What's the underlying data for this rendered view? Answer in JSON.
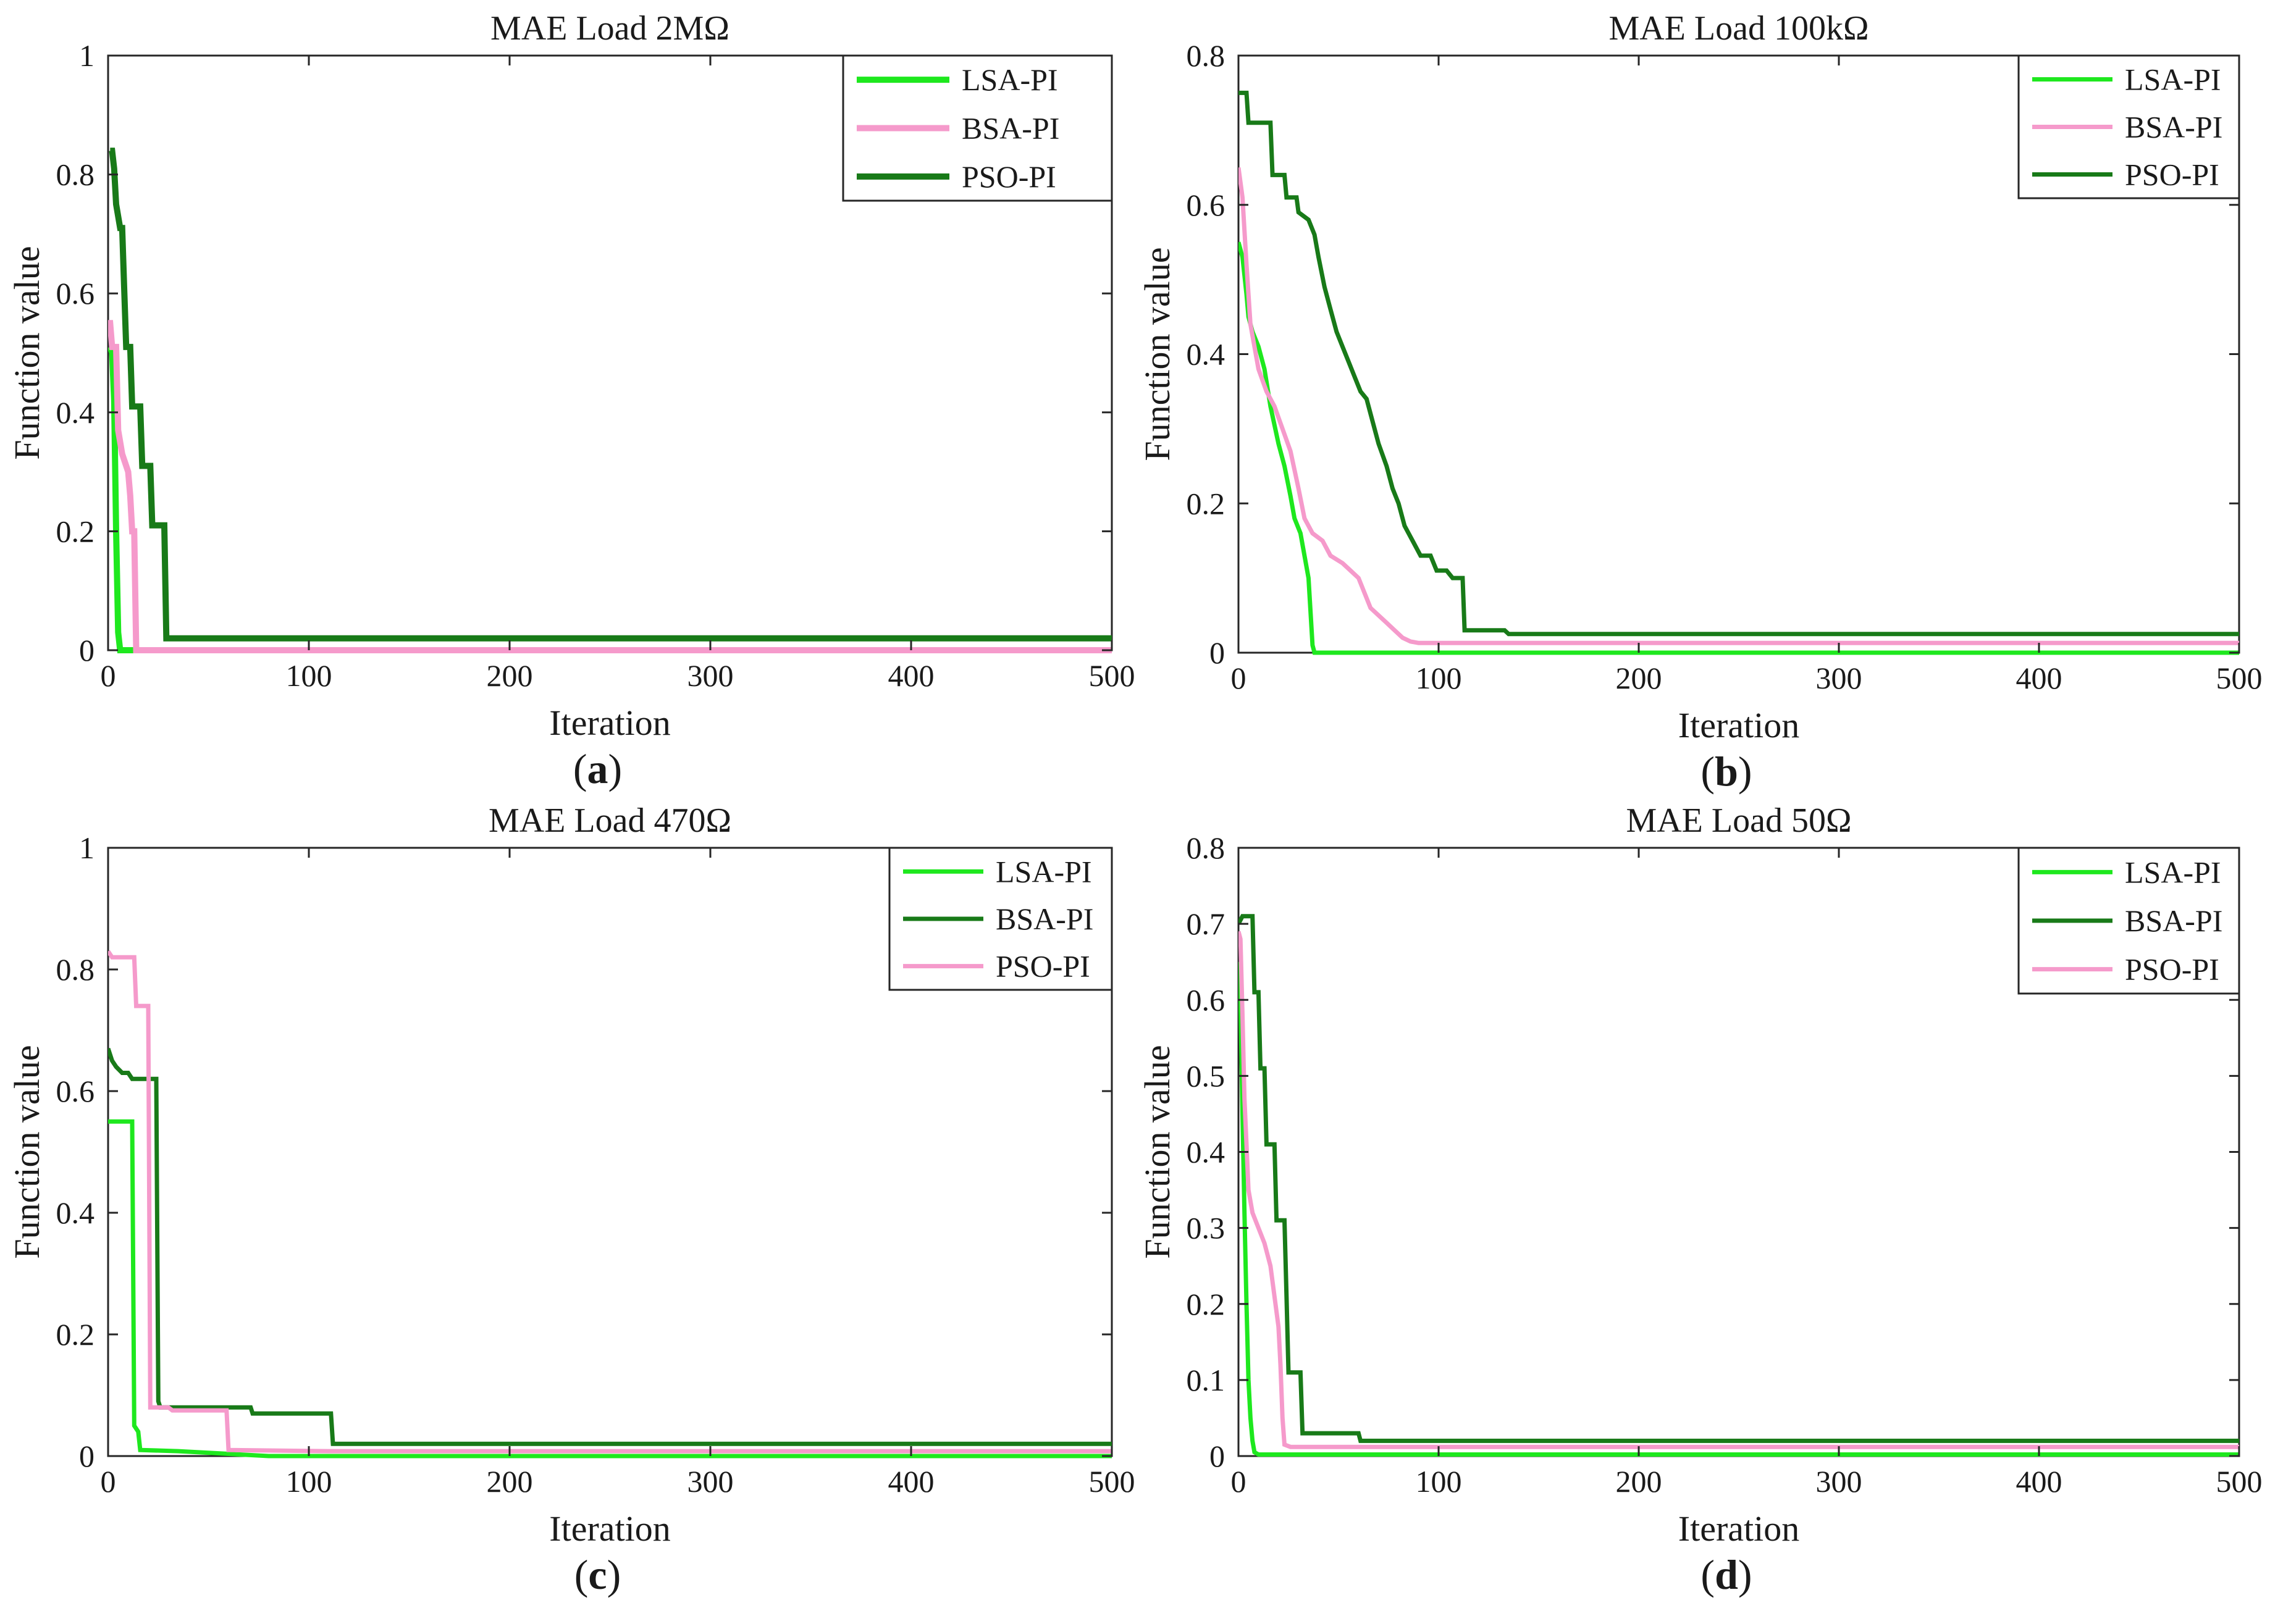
{
  "colors": {
    "light_green": "#1EE81E",
    "dark_green": "#187A18",
    "pink": "#F59ACB"
  },
  "chart_data": [
    {
      "type": "line",
      "subplot_label": "(a)",
      "sublabel_letter": "a",
      "title": "MAE Load 2MΩ",
      "xlabel": "Iteration",
      "ylabel": "Function value",
      "xlim": [
        0,
        500
      ],
      "ylim": [
        0,
        1
      ],
      "xticks": [
        "0",
        "100",
        "200",
        "300",
        "400",
        "500"
      ],
      "yticks": [
        "0",
        "0.2",
        "0.4",
        "0.6",
        "0.8",
        "1"
      ],
      "grid": false,
      "legend_position": "top-right",
      "series": [
        {
          "name": "LSA-PI",
          "color": "#1EE81E",
          "points": [
            [
              1,
              0.51
            ],
            [
              2,
              0.5
            ],
            [
              3,
              0.42
            ],
            [
              4,
              0.2
            ],
            [
              5,
              0.03
            ],
            [
              6,
              0.0
            ],
            [
              500,
              0.0
            ]
          ]
        },
        {
          "name": "BSA-PI",
          "color": "#F59ACB",
          "points": [
            [
              0,
              0.55
            ],
            [
              1,
              0.55
            ],
            [
              2,
              0.51
            ],
            [
              4,
              0.51
            ],
            [
              5,
              0.37
            ],
            [
              7,
              0.33
            ],
            [
              9,
              0.31
            ],
            [
              10,
              0.3
            ],
            [
              11,
              0.26
            ],
            [
              12,
              0.2
            ],
            [
              13,
              0.2
            ],
            [
              14,
              0.0
            ],
            [
              500,
              0.0
            ]
          ]
        },
        {
          "name": "PSO-PI",
          "color": "#187A18",
          "points": [
            [
              1,
              0.84
            ],
            [
              2,
              0.84
            ],
            [
              3,
              0.81
            ],
            [
              4,
              0.75
            ],
            [
              6,
              0.71
            ],
            [
              7,
              0.71
            ],
            [
              8,
              0.61
            ],
            [
              9,
              0.51
            ],
            [
              11,
              0.51
            ],
            [
              12,
              0.41
            ],
            [
              16,
              0.41
            ],
            [
              17,
              0.31
            ],
            [
              21,
              0.31
            ],
            [
              22,
              0.21
            ],
            [
              28,
              0.21
            ],
            [
              29,
              0.02
            ],
            [
              500,
              0.02
            ]
          ]
        }
      ]
    },
    {
      "type": "line",
      "subplot_label": "(b)",
      "sublabel_letter": "b",
      "title": "MAE Load 100kΩ",
      "xlabel": "Iteration",
      "ylabel": "Function value",
      "xlim": [
        0,
        500
      ],
      "ylim": [
        0,
        0.8
      ],
      "xticks": [
        "0",
        "100",
        "200",
        "300",
        "400",
        "500"
      ],
      "yticks": [
        "0",
        "0.2",
        "0.4",
        "0.6",
        "0.8"
      ],
      "grid": false,
      "legend_position": "top-right",
      "series": [
        {
          "name": "LSA-PI",
          "color": "#1EE81E",
          "points": [
            [
              0,
              0.55
            ],
            [
              2,
              0.53
            ],
            [
              4,
              0.48
            ],
            [
              5,
              0.45
            ],
            [
              7,
              0.43
            ],
            [
              10,
              0.41
            ],
            [
              13,
              0.38
            ],
            [
              16,
              0.33
            ],
            [
              20,
              0.28
            ],
            [
              23,
              0.25
            ],
            [
              26,
              0.21
            ],
            [
              28,
              0.18
            ],
            [
              31,
              0.16
            ],
            [
              33,
              0.13
            ],
            [
              35,
              0.1
            ],
            [
              37,
              0.01
            ],
            [
              38,
              0.0
            ],
            [
              500,
              0.0
            ]
          ]
        },
        {
          "name": "BSA-PI",
          "color": "#F59ACB",
          "points": [
            [
              0,
              0.65
            ],
            [
              2,
              0.61
            ],
            [
              4,
              0.52
            ],
            [
              6,
              0.44
            ],
            [
              8,
              0.41
            ],
            [
              10,
              0.38
            ],
            [
              14,
              0.35
            ],
            [
              18,
              0.33
            ],
            [
              22,
              0.3
            ],
            [
              26,
              0.27
            ],
            [
              30,
              0.22
            ],
            [
              33,
              0.18
            ],
            [
              37,
              0.16
            ],
            [
              42,
              0.15
            ],
            [
              46,
              0.13
            ],
            [
              52,
              0.12
            ],
            [
              56,
              0.11
            ],
            [
              60,
              0.1
            ],
            [
              63,
              0.08
            ],
            [
              66,
              0.06
            ],
            [
              70,
              0.05
            ],
            [
              74,
              0.04
            ],
            [
              78,
              0.03
            ],
            [
              82,
              0.02
            ],
            [
              86,
              0.015
            ],
            [
              90,
              0.013
            ],
            [
              500,
              0.013
            ]
          ]
        },
        {
          "name": "PSO-PI",
          "color": "#187A18",
          "points": [
            [
              0,
              0.75
            ],
            [
              4,
              0.75
            ],
            [
              5,
              0.71
            ],
            [
              16,
              0.71
            ],
            [
              17,
              0.64
            ],
            [
              23,
              0.64
            ],
            [
              24,
              0.61
            ],
            [
              29,
              0.61
            ],
            [
              30,
              0.59
            ],
            [
              35,
              0.58
            ],
            [
              38,
              0.56
            ],
            [
              40,
              0.53
            ],
            [
              43,
              0.49
            ],
            [
              46,
              0.46
            ],
            [
              49,
              0.43
            ],
            [
              52,
              0.41
            ],
            [
              55,
              0.39
            ],
            [
              58,
              0.37
            ],
            [
              61,
              0.35
            ],
            [
              64,
              0.34
            ],
            [
              67,
              0.31
            ],
            [
              70,
              0.28
            ],
            [
              74,
              0.25
            ],
            [
              77,
              0.22
            ],
            [
              80,
              0.2
            ],
            [
              83,
              0.17
            ],
            [
              87,
              0.15
            ],
            [
              91,
              0.13
            ],
            [
              96,
              0.13
            ],
            [
              99,
              0.11
            ],
            [
              104,
              0.11
            ],
            [
              107,
              0.1
            ],
            [
              112,
              0.1
            ],
            [
              113,
              0.03
            ],
            [
              133,
              0.03
            ],
            [
              135,
              0.025
            ],
            [
              500,
              0.025
            ]
          ]
        }
      ]
    },
    {
      "type": "line",
      "subplot_label": "(c)",
      "sublabel_letter": "c",
      "title": "MAE Load 470Ω",
      "xlabel": "Iteration",
      "ylabel": "Function value",
      "xlim": [
        0,
        500
      ],
      "ylim": [
        0,
        1
      ],
      "xticks": [
        "0",
        "100",
        "200",
        "300",
        "400",
        "500"
      ],
      "yticks": [
        "0",
        "0.2",
        "0.4",
        "0.6",
        "0.8",
        "1"
      ],
      "grid": false,
      "legend_position": "top-right",
      "series": [
        {
          "name": "LSA-PI",
          "color": "#1EE81E",
          "points": [
            [
              0,
              0.55
            ],
            [
              2,
              0.55
            ],
            [
              3,
              0.55
            ],
            [
              6,
              0.55
            ],
            [
              7,
              0.55
            ],
            [
              12,
              0.55
            ],
            [
              13,
              0.05
            ],
            [
              15,
              0.04
            ],
            [
              16,
              0.01
            ],
            [
              35,
              0.008
            ],
            [
              80,
              0.0
            ],
            [
              500,
              0.0
            ]
          ]
        },
        {
          "name": "BSA-PI",
          "color": "#187A18",
          "points": [
            [
              0,
              0.67
            ],
            [
              2,
              0.65
            ],
            [
              4,
              0.64
            ],
            [
              7,
              0.63
            ],
            [
              10,
              0.63
            ],
            [
              12,
              0.62
            ],
            [
              24,
              0.62
            ],
            [
              25,
              0.09
            ],
            [
              26,
              0.08
            ],
            [
              71,
              0.08
            ],
            [
              72,
              0.07
            ],
            [
              111,
              0.07
            ],
            [
              112,
              0.02
            ],
            [
              500,
              0.02
            ]
          ]
        },
        {
          "name": "PSO-PI",
          "color": "#F59ACB",
          "points": [
            [
              0,
              0.83
            ],
            [
              2,
              0.82
            ],
            [
              13,
              0.82
            ],
            [
              14,
              0.74
            ],
            [
              20,
              0.74
            ],
            [
              21,
              0.08
            ],
            [
              30,
              0.08
            ],
            [
              32,
              0.075
            ],
            [
              59,
              0.075
            ],
            [
              60,
              0.01
            ],
            [
              110,
              0.008
            ],
            [
              500,
              0.008
            ]
          ]
        }
      ]
    },
    {
      "type": "line",
      "subplot_label": "(d)",
      "sublabel_letter": "d",
      "title": "MAE Load 50Ω",
      "xlabel": "Iteration",
      "ylabel": "Function value",
      "xlim": [
        0,
        500
      ],
      "ylim": [
        0,
        0.8
      ],
      "xticks": [
        "0",
        "100",
        "200",
        "300",
        "400",
        "500"
      ],
      "yticks": [
        "0",
        "0.1",
        "0.2",
        "0.3",
        "0.4",
        "0.5",
        "0.6",
        "0.7",
        "0.8"
      ],
      "grid": false,
      "legend_position": "top-right",
      "series": [
        {
          "name": "LSA-PI",
          "color": "#1EE81E",
          "points": [
            [
              0,
              0.65
            ],
            [
              1,
              0.6
            ],
            [
              2,
              0.45
            ],
            [
              3,
              0.32
            ],
            [
              4,
              0.2
            ],
            [
              5,
              0.1
            ],
            [
              6,
              0.05
            ],
            [
              7,
              0.02
            ],
            [
              8,
              0.005
            ],
            [
              10,
              0.002
            ],
            [
              500,
              0.002
            ]
          ]
        },
        {
          "name": "BSA-PI",
          "color": "#187A18",
          "points": [
            [
              0,
              0.7
            ],
            [
              2,
              0.71
            ],
            [
              7,
              0.71
            ],
            [
              8,
              0.61
            ],
            [
              10,
              0.61
            ],
            [
              11,
              0.51
            ],
            [
              13,
              0.51
            ],
            [
              14,
              0.41
            ],
            [
              18,
              0.41
            ],
            [
              19,
              0.31
            ],
            [
              23,
              0.31
            ],
            [
              24,
              0.21
            ],
            [
              25,
              0.11
            ],
            [
              31,
              0.11
            ],
            [
              32,
              0.03
            ],
            [
              60,
              0.03
            ],
            [
              61,
              0.02
            ],
            [
              500,
              0.02
            ]
          ]
        },
        {
          "name": "PSO-PI",
          "color": "#F59ACB",
          "points": [
            [
              0,
              0.69
            ],
            [
              1,
              0.68
            ],
            [
              2,
              0.58
            ],
            [
              3,
              0.47
            ],
            [
              4,
              0.41
            ],
            [
              5,
              0.35
            ],
            [
              7,
              0.32
            ],
            [
              10,
              0.3
            ],
            [
              13,
              0.28
            ],
            [
              16,
              0.25
            ],
            [
              18,
              0.21
            ],
            [
              20,
              0.17
            ],
            [
              21,
              0.12
            ],
            [
              22,
              0.05
            ],
            [
              23,
              0.015
            ],
            [
              26,
              0.012
            ],
            [
              500,
              0.012
            ]
          ]
        }
      ]
    }
  ]
}
